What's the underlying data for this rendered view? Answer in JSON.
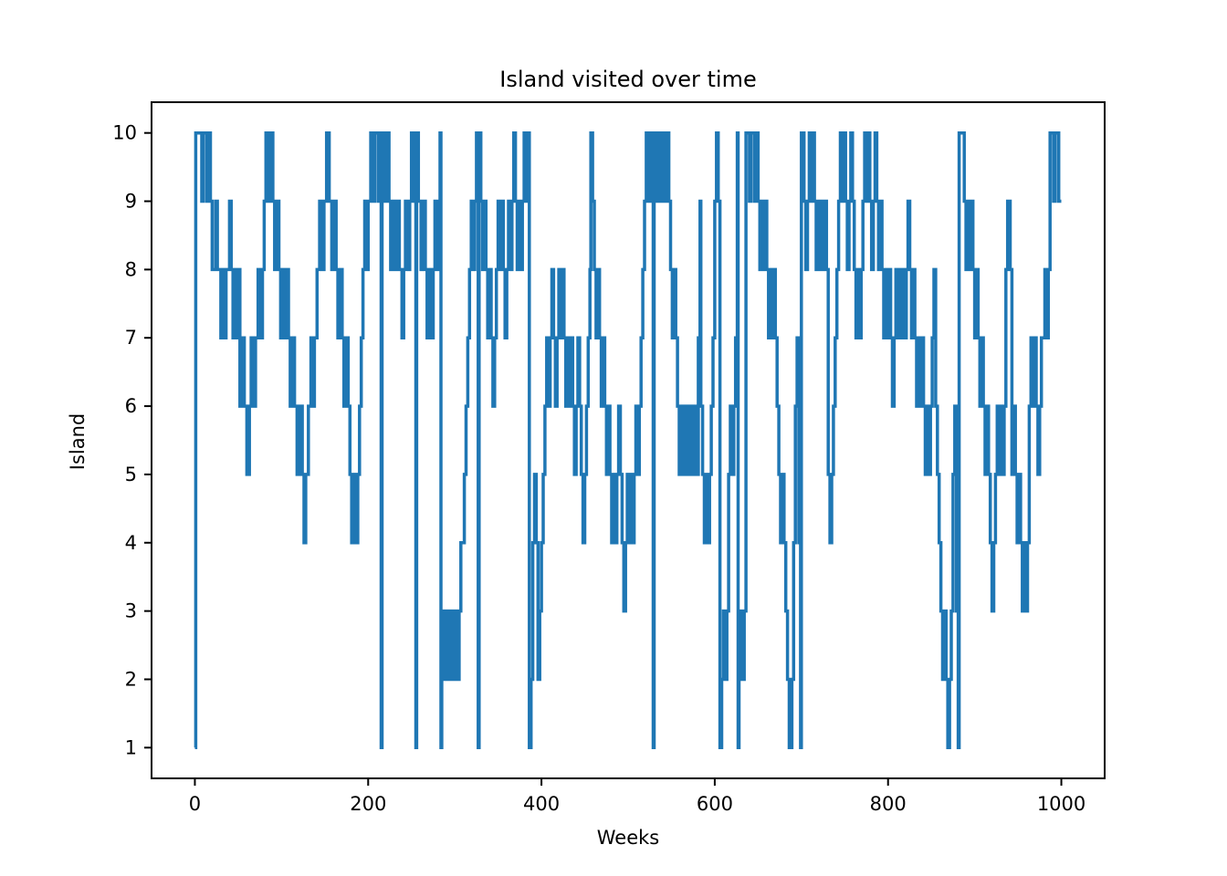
{
  "chart_data": {
    "type": "line",
    "style": "step-post",
    "title": "Island visited over time",
    "xlabel": "Weeks",
    "ylabel": "Island",
    "line_color": "#1f77b4",
    "background_color": "#ffffff",
    "spine_color": "#000000",
    "grid": false,
    "legend": false,
    "xticks": [
      0,
      200,
      400,
      600,
      800,
      1000
    ],
    "yticks": [
      1,
      2,
      3,
      4,
      5,
      6,
      7,
      8,
      9,
      10
    ],
    "xlim": [
      -50,
      1050
    ],
    "ylim": [
      0.55,
      10.45
    ],
    "x_range_weeks": [
      0,
      1000
    ],
    "island_range": [
      1,
      10
    ],
    "points": [
      [
        0,
        1
      ],
      [
        1,
        10
      ],
      [
        8,
        9
      ],
      [
        10,
        10
      ],
      [
        14,
        9
      ],
      [
        16,
        10
      ],
      [
        18,
        9
      ],
      [
        20,
        8
      ],
      [
        24,
        9
      ],
      [
        26,
        8
      ],
      [
        30,
        7
      ],
      [
        32,
        8
      ],
      [
        34,
        7
      ],
      [
        36,
        8
      ],
      [
        40,
        9
      ],
      [
        42,
        8
      ],
      [
        44,
        7
      ],
      [
        46,
        8
      ],
      [
        48,
        7
      ],
      [
        50,
        8
      ],
      [
        52,
        6
      ],
      [
        55,
        7
      ],
      [
        57,
        6
      ],
      [
        60,
        5
      ],
      [
        63,
        6
      ],
      [
        65,
        7
      ],
      [
        67,
        6
      ],
      [
        70,
        7
      ],
      [
        73,
        8
      ],
      [
        75,
        7
      ],
      [
        78,
        8
      ],
      [
        80,
        9
      ],
      [
        82,
        10
      ],
      [
        85,
        9
      ],
      [
        88,
        10
      ],
      [
        90,
        9
      ],
      [
        92,
        8
      ],
      [
        95,
        9
      ],
      [
        97,
        8
      ],
      [
        99,
        7
      ],
      [
        101,
        8
      ],
      [
        104,
        7
      ],
      [
        106,
        8
      ],
      [
        108,
        7
      ],
      [
        110,
        6
      ],
      [
        113,
        7
      ],
      [
        115,
        6
      ],
      [
        118,
        5
      ],
      [
        121,
        6
      ],
      [
        124,
        5
      ],
      [
        126,
        4
      ],
      [
        128,
        5
      ],
      [
        131,
        6
      ],
      [
        134,
        7
      ],
      [
        136,
        6
      ],
      [
        138,
        7
      ],
      [
        141,
        8
      ],
      [
        144,
        9
      ],
      [
        146,
        8
      ],
      [
        149,
        9
      ],
      [
        152,
        10
      ],
      [
        155,
        9
      ],
      [
        158,
        8
      ],
      [
        160,
        9
      ],
      [
        163,
        8
      ],
      [
        165,
        7
      ],
      [
        168,
        8
      ],
      [
        170,
        7
      ],
      [
        172,
        6
      ],
      [
        175,
        7
      ],
      [
        177,
        6
      ],
      [
        179,
        5
      ],
      [
        181,
        4
      ],
      [
        184,
        5
      ],
      [
        186,
        4
      ],
      [
        188,
        5
      ],
      [
        190,
        6
      ],
      [
        192,
        7
      ],
      [
        194,
        8
      ],
      [
        196,
        9
      ],
      [
        198,
        8
      ],
      [
        200,
        9
      ],
      [
        203,
        10
      ],
      [
        206,
        9
      ],
      [
        208,
        10
      ],
      [
        212,
        9
      ],
      [
        214,
        10
      ],
      [
        215,
        1
      ],
      [
        216,
        10
      ],
      [
        218,
        9
      ],
      [
        221,
        10
      ],
      [
        224,
        9
      ],
      [
        226,
        8
      ],
      [
        228,
        9
      ],
      [
        231,
        8
      ],
      [
        234,
        9
      ],
      [
        236,
        8
      ],
      [
        239,
        7
      ],
      [
        241,
        8
      ],
      [
        243,
        9
      ],
      [
        246,
        8
      ],
      [
        248,
        9
      ],
      [
        250,
        10
      ],
      [
        253,
        9
      ],
      [
        255,
        1
      ],
      [
        256,
        10
      ],
      [
        258,
        9
      ],
      [
        261,
        8
      ],
      [
        263,
        9
      ],
      [
        266,
        8
      ],
      [
        268,
        7
      ],
      [
        270,
        8
      ],
      [
        272,
        7
      ],
      [
        275,
        8
      ],
      [
        277,
        9
      ],
      [
        279,
        8
      ],
      [
        281,
        9
      ],
      [
        283,
        10
      ],
      [
        284,
        1
      ],
      [
        285,
        2
      ],
      [
        287,
        3
      ],
      [
        290,
        2
      ],
      [
        292,
        3
      ],
      [
        294,
        2
      ],
      [
        296,
        3
      ],
      [
        298,
        2
      ],
      [
        300,
        3
      ],
      [
        303,
        2
      ],
      [
        305,
        3
      ],
      [
        307,
        4
      ],
      [
        311,
        5
      ],
      [
        313,
        6
      ],
      [
        315,
        7
      ],
      [
        317,
        8
      ],
      [
        319,
        9
      ],
      [
        321,
        8
      ],
      [
        323,
        9
      ],
      [
        325,
        10
      ],
      [
        327,
        1
      ],
      [
        328,
        10
      ],
      [
        330,
        9
      ],
      [
        332,
        8
      ],
      [
        334,
        9
      ],
      [
        336,
        8
      ],
      [
        338,
        7
      ],
      [
        340,
        8
      ],
      [
        342,
        7
      ],
      [
        344,
        6
      ],
      [
        346,
        7
      ],
      [
        348,
        8
      ],
      [
        350,
        9
      ],
      [
        352,
        8
      ],
      [
        354,
        9
      ],
      [
        356,
        8
      ],
      [
        358,
        7
      ],
      [
        360,
        8
      ],
      [
        362,
        9
      ],
      [
        364,
        8
      ],
      [
        366,
        9
      ],
      [
        368,
        10
      ],
      [
        370,
        9
      ],
      [
        372,
        8
      ],
      [
        374,
        9
      ],
      [
        376,
        8
      ],
      [
        378,
        9
      ],
      [
        380,
        10
      ],
      [
        382,
        9
      ],
      [
        384,
        10
      ],
      [
        386,
        1
      ],
      [
        388,
        2
      ],
      [
        390,
        4
      ],
      [
        392,
        5
      ],
      [
        394,
        4
      ],
      [
        396,
        2
      ],
      [
        398,
        3
      ],
      [
        400,
        4
      ],
      [
        402,
        5
      ],
      [
        404,
        6
      ],
      [
        406,
        7
      ],
      [
        408,
        6
      ],
      [
        410,
        7
      ],
      [
        412,
        8
      ],
      [
        414,
        7
      ],
      [
        416,
        6
      ],
      [
        418,
        7
      ],
      [
        420,
        8
      ],
      [
        422,
        7
      ],
      [
        424,
        8
      ],
      [
        426,
        7
      ],
      [
        428,
        6
      ],
      [
        430,
        7
      ],
      [
        432,
        6
      ],
      [
        434,
        7
      ],
      [
        436,
        6
      ],
      [
        438,
        5
      ],
      [
        440,
        6
      ],
      [
        442,
        7
      ],
      [
        444,
        6
      ],
      [
        446,
        5
      ],
      [
        448,
        4
      ],
      [
        450,
        5
      ],
      [
        452,
        6
      ],
      [
        454,
        7
      ],
      [
        456,
        8
      ],
      [
        457,
        10
      ],
      [
        459,
        9
      ],
      [
        461,
        8
      ],
      [
        463,
        7
      ],
      [
        465,
        8
      ],
      [
        467,
        7
      ],
      [
        469,
        6
      ],
      [
        471,
        7
      ],
      [
        473,
        6
      ],
      [
        475,
        5
      ],
      [
        477,
        6
      ],
      [
        479,
        5
      ],
      [
        481,
        4
      ],
      [
        483,
        5
      ],
      [
        485,
        4
      ],
      [
        487,
        5
      ],
      [
        489,
        6
      ],
      [
        491,
        5
      ],
      [
        493,
        4
      ],
      [
        495,
        3
      ],
      [
        497,
        4
      ],
      [
        499,
        5
      ],
      [
        501,
        4
      ],
      [
        503,
        5
      ],
      [
        505,
        4
      ],
      [
        507,
        5
      ],
      [
        509,
        6
      ],
      [
        511,
        5
      ],
      [
        513,
        6
      ],
      [
        515,
        7
      ],
      [
        517,
        8
      ],
      [
        519,
        9
      ],
      [
        521,
        10
      ],
      [
        524,
        9
      ],
      [
        526,
        10
      ],
      [
        528,
        9
      ],
      [
        529,
        1
      ],
      [
        530,
        10
      ],
      [
        533,
        9
      ],
      [
        535,
        10
      ],
      [
        538,
        9
      ],
      [
        540,
        10
      ],
      [
        543,
        9
      ],
      [
        545,
        10
      ],
      [
        547,
        9
      ],
      [
        549,
        8
      ],
      [
        551,
        7
      ],
      [
        553,
        8
      ],
      [
        555,
        7
      ],
      [
        557,
        6
      ],
      [
        559,
        5
      ],
      [
        561,
        6
      ],
      [
        563,
        5
      ],
      [
        565,
        6
      ],
      [
        567,
        5
      ],
      [
        569,
        6
      ],
      [
        571,
        5
      ],
      [
        573,
        6
      ],
      [
        575,
        5
      ],
      [
        577,
        6
      ],
      [
        579,
        5
      ],
      [
        581,
        7
      ],
      [
        583,
        9
      ],
      [
        584,
        6
      ],
      [
        586,
        5
      ],
      [
        588,
        4
      ],
      [
        590,
        5
      ],
      [
        592,
        4
      ],
      [
        594,
        5
      ],
      [
        596,
        6
      ],
      [
        598,
        7
      ],
      [
        600,
        9
      ],
      [
        602,
        10
      ],
      [
        604,
        9
      ],
      [
        606,
        1
      ],
      [
        608,
        2
      ],
      [
        610,
        3
      ],
      [
        612,
        2
      ],
      [
        614,
        3
      ],
      [
        616,
        5
      ],
      [
        618,
        6
      ],
      [
        620,
        5
      ],
      [
        622,
        6
      ],
      [
        624,
        7
      ],
      [
        626,
        10
      ],
      [
        627,
        1
      ],
      [
        628,
        2
      ],
      [
        630,
        3
      ],
      [
        632,
        2
      ],
      [
        634,
        3
      ],
      [
        636,
        10
      ],
      [
        640,
        9
      ],
      [
        642,
        10
      ],
      [
        646,
        9
      ],
      [
        648,
        10
      ],
      [
        650,
        9
      ],
      [
        652,
        8
      ],
      [
        654,
        9
      ],
      [
        656,
        8
      ],
      [
        658,
        9
      ],
      [
        660,
        8
      ],
      [
        662,
        7
      ],
      [
        664,
        8
      ],
      [
        666,
        7
      ],
      [
        668,
        8
      ],
      [
        670,
        7
      ],
      [
        672,
        6
      ],
      [
        674,
        5
      ],
      [
        676,
        4
      ],
      [
        678,
        5
      ],
      [
        680,
        4
      ],
      [
        682,
        3
      ],
      [
        684,
        2
      ],
      [
        686,
        1
      ],
      [
        689,
        2
      ],
      [
        691,
        4
      ],
      [
        693,
        6
      ],
      [
        695,
        7
      ],
      [
        697,
        4
      ],
      [
        699,
        1
      ],
      [
        700,
        10
      ],
      [
        703,
        9
      ],
      [
        705,
        8
      ],
      [
        707,
        9
      ],
      [
        709,
        10
      ],
      [
        711,
        9
      ],
      [
        713,
        10
      ],
      [
        715,
        9
      ],
      [
        717,
        8
      ],
      [
        719,
        9
      ],
      [
        721,
        8
      ],
      [
        723,
        9
      ],
      [
        725,
        8
      ],
      [
        727,
        9
      ],
      [
        729,
        8
      ],
      [
        731,
        5
      ],
      [
        733,
        4
      ],
      [
        735,
        5
      ],
      [
        737,
        6
      ],
      [
        739,
        7
      ],
      [
        741,
        8
      ],
      [
        743,
        9
      ],
      [
        745,
        10
      ],
      [
        747,
        9
      ],
      [
        749,
        10
      ],
      [
        751,
        9
      ],
      [
        753,
        8
      ],
      [
        755,
        9
      ],
      [
        757,
        10
      ],
      [
        759,
        9
      ],
      [
        761,
        8
      ],
      [
        763,
        7
      ],
      [
        765,
        8
      ],
      [
        767,
        7
      ],
      [
        769,
        8
      ],
      [
        771,
        9
      ],
      [
        773,
        10
      ],
      [
        775,
        9
      ],
      [
        777,
        10
      ],
      [
        779,
        9
      ],
      [
        781,
        8
      ],
      [
        783,
        9
      ],
      [
        785,
        10
      ],
      [
        787,
        9
      ],
      [
        789,
        8
      ],
      [
        791,
        9
      ],
      [
        793,
        8
      ],
      [
        795,
        7
      ],
      [
        797,
        8
      ],
      [
        799,
        7
      ],
      [
        801,
        8
      ],
      [
        803,
        7
      ],
      [
        805,
        6
      ],
      [
        807,
        7
      ],
      [
        809,
        8
      ],
      [
        811,
        7
      ],
      [
        813,
        8
      ],
      [
        815,
        7
      ],
      [
        817,
        8
      ],
      [
        819,
        7
      ],
      [
        821,
        8
      ],
      [
        823,
        9
      ],
      [
        825,
        8
      ],
      [
        827,
        7
      ],
      [
        829,
        8
      ],
      [
        831,
        7
      ],
      [
        833,
        6
      ],
      [
        835,
        7
      ],
      [
        837,
        6
      ],
      [
        839,
        7
      ],
      [
        841,
        6
      ],
      [
        843,
        5
      ],
      [
        845,
        6
      ],
      [
        847,
        5
      ],
      [
        849,
        6
      ],
      [
        851,
        7
      ],
      [
        853,
        8
      ],
      [
        855,
        6
      ],
      [
        857,
        5
      ],
      [
        859,
        4
      ],
      [
        861,
        3
      ],
      [
        863,
        2
      ],
      [
        865,
        3
      ],
      [
        867,
        2
      ],
      [
        869,
        1
      ],
      [
        871,
        2
      ],
      [
        873,
        3
      ],
      [
        875,
        5
      ],
      [
        877,
        6
      ],
      [
        879,
        3
      ],
      [
        881,
        1
      ],
      [
        882,
        10
      ],
      [
        888,
        9
      ],
      [
        890,
        8
      ],
      [
        892,
        9
      ],
      [
        894,
        8
      ],
      [
        896,
        9
      ],
      [
        898,
        8
      ],
      [
        900,
        7
      ],
      [
        902,
        8
      ],
      [
        904,
        7
      ],
      [
        906,
        6
      ],
      [
        908,
        7
      ],
      [
        910,
        6
      ],
      [
        912,
        5
      ],
      [
        914,
        6
      ],
      [
        916,
        5
      ],
      [
        918,
        4
      ],
      [
        920,
        3
      ],
      [
        922,
        4
      ],
      [
        924,
        5
      ],
      [
        926,
        6
      ],
      [
        928,
        5
      ],
      [
        930,
        6
      ],
      [
        932,
        5
      ],
      [
        934,
        6
      ],
      [
        936,
        8
      ],
      [
        938,
        9
      ],
      [
        941,
        8
      ],
      [
        943,
        5
      ],
      [
        945,
        6
      ],
      [
        947,
        5
      ],
      [
        949,
        4
      ],
      [
        951,
        5
      ],
      [
        953,
        4
      ],
      [
        955,
        3
      ],
      [
        957,
        4
      ],
      [
        959,
        3
      ],
      [
        961,
        4
      ],
      [
        963,
        6
      ],
      [
        965,
        7
      ],
      [
        967,
        6
      ],
      [
        969,
        7
      ],
      [
        971,
        6
      ],
      [
        973,
        5
      ],
      [
        975,
        6
      ],
      [
        977,
        7
      ],
      [
        981,
        8
      ],
      [
        983,
        7
      ],
      [
        985,
        8
      ],
      [
        987,
        10
      ],
      [
        991,
        9
      ],
      [
        993,
        10
      ],
      [
        997,
        9
      ],
      [
        1000,
        9
      ]
    ]
  }
}
